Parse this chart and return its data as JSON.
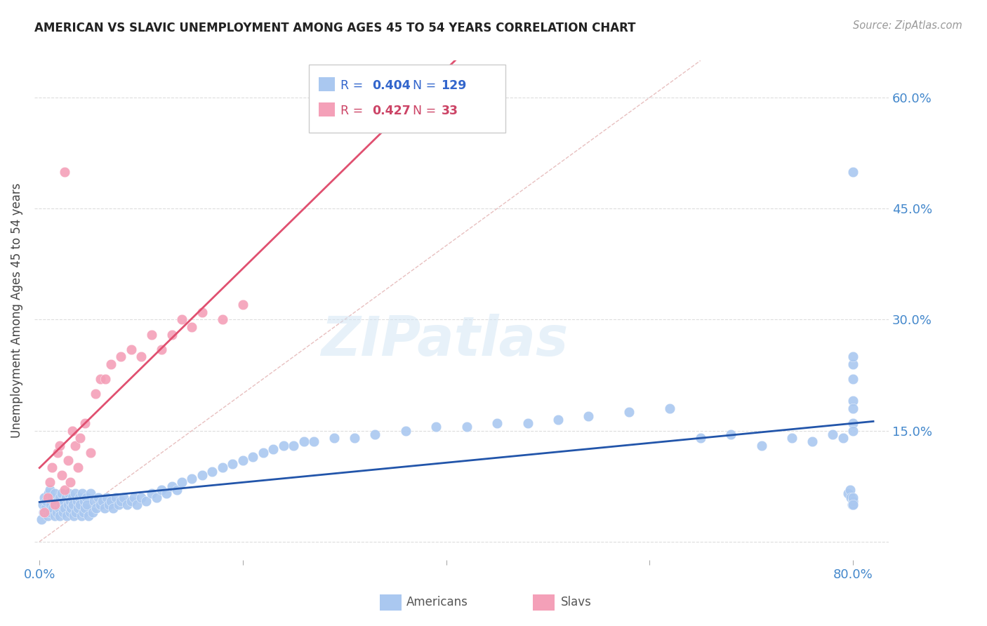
{
  "title": "AMERICAN VS SLAVIC UNEMPLOYMENT AMONG AGES 45 TO 54 YEARS CORRELATION CHART",
  "source": "Source: ZipAtlas.com",
  "ylabel": "Unemployment Among Ages 45 to 54 years",
  "legend_R_americans": "0.404",
  "legend_N_americans": "129",
  "legend_R_slavs": "0.427",
  "legend_N_slavs": "33",
  "american_color": "#aac8f0",
  "slavic_color": "#f4a0b8",
  "american_line_color": "#2255aa",
  "slavic_line_color": "#e05070",
  "diagonal_color": "#e8c0c0",
  "watermark": "ZIPatlas",
  "americans_x": [
    0.002,
    0.003,
    0.004,
    0.005,
    0.006,
    0.007,
    0.008,
    0.009,
    0.01,
    0.01,
    0.011,
    0.012,
    0.013,
    0.014,
    0.015,
    0.015,
    0.016,
    0.017,
    0.018,
    0.019,
    0.02,
    0.02,
    0.021,
    0.022,
    0.023,
    0.024,
    0.025,
    0.026,
    0.027,
    0.028,
    0.029,
    0.03,
    0.03,
    0.031,
    0.032,
    0.033,
    0.034,
    0.035,
    0.036,
    0.037,
    0.038,
    0.039,
    0.04,
    0.041,
    0.042,
    0.043,
    0.044,
    0.045,
    0.046,
    0.047,
    0.048,
    0.05,
    0.052,
    0.054,
    0.056,
    0.058,
    0.06,
    0.062,
    0.064,
    0.066,
    0.068,
    0.07,
    0.072,
    0.075,
    0.078,
    0.08,
    0.083,
    0.086,
    0.09,
    0.093,
    0.096,
    0.1,
    0.105,
    0.11,
    0.115,
    0.12,
    0.125,
    0.13,
    0.135,
    0.14,
    0.15,
    0.16,
    0.17,
    0.18,
    0.19,
    0.2,
    0.21,
    0.22,
    0.23,
    0.24,
    0.25,
    0.26,
    0.27,
    0.29,
    0.31,
    0.33,
    0.36,
    0.39,
    0.42,
    0.45,
    0.48,
    0.51,
    0.54,
    0.58,
    0.62,
    0.65,
    0.68,
    0.71,
    0.74,
    0.76,
    0.78,
    0.79,
    0.795,
    0.797,
    0.798,
    0.799,
    0.8,
    0.8,
    0.8,
    0.8,
    0.8,
    0.8,
    0.8,
    0.8,
    0.8,
    0.8,
    0.8,
    0.8,
    0.8
  ],
  "americans_y": [
    0.03,
    0.05,
    0.04,
    0.06,
    0.045,
    0.055,
    0.035,
    0.065,
    0.07,
    0.04,
    0.05,
    0.06,
    0.045,
    0.055,
    0.035,
    0.065,
    0.05,
    0.04,
    0.055,
    0.045,
    0.06,
    0.035,
    0.05,
    0.065,
    0.04,
    0.055,
    0.045,
    0.06,
    0.035,
    0.05,
    0.065,
    0.04,
    0.055,
    0.045,
    0.06,
    0.05,
    0.035,
    0.065,
    0.04,
    0.055,
    0.045,
    0.06,
    0.05,
    0.035,
    0.065,
    0.04,
    0.055,
    0.045,
    0.06,
    0.05,
    0.035,
    0.065,
    0.04,
    0.055,
    0.045,
    0.06,
    0.05,
    0.055,
    0.045,
    0.06,
    0.05,
    0.055,
    0.045,
    0.06,
    0.05,
    0.055,
    0.06,
    0.05,
    0.055,
    0.06,
    0.05,
    0.06,
    0.055,
    0.065,
    0.06,
    0.07,
    0.065,
    0.075,
    0.07,
    0.08,
    0.085,
    0.09,
    0.095,
    0.1,
    0.105,
    0.11,
    0.115,
    0.12,
    0.125,
    0.13,
    0.13,
    0.135,
    0.135,
    0.14,
    0.14,
    0.145,
    0.15,
    0.155,
    0.155,
    0.16,
    0.16,
    0.165,
    0.17,
    0.175,
    0.18,
    0.14,
    0.145,
    0.13,
    0.14,
    0.135,
    0.145,
    0.14,
    0.065,
    0.07,
    0.06,
    0.05,
    0.055,
    0.05,
    0.055,
    0.06,
    0.05,
    0.24,
    0.25,
    0.22,
    0.19,
    0.18,
    0.16,
    0.15,
    0.5
  ],
  "slavs_x": [
    0.005,
    0.008,
    0.01,
    0.012,
    0.015,
    0.018,
    0.02,
    0.022,
    0.025,
    0.025,
    0.028,
    0.03,
    0.032,
    0.035,
    0.038,
    0.04,
    0.045,
    0.05,
    0.055,
    0.06,
    0.065,
    0.07,
    0.08,
    0.09,
    0.1,
    0.11,
    0.12,
    0.13,
    0.14,
    0.15,
    0.16,
    0.18,
    0.2
  ],
  "slavs_y": [
    0.04,
    0.06,
    0.08,
    0.1,
    0.05,
    0.12,
    0.13,
    0.09,
    0.07,
    0.5,
    0.11,
    0.08,
    0.15,
    0.13,
    0.1,
    0.14,
    0.16,
    0.12,
    0.2,
    0.22,
    0.22,
    0.24,
    0.25,
    0.26,
    0.25,
    0.28,
    0.26,
    0.28,
    0.3,
    0.29,
    0.31,
    0.3,
    0.32
  ],
  "xlim": [
    -0.005,
    0.835
  ],
  "ylim": [
    -0.025,
    0.65
  ],
  "xticks": [
    0.0,
    0.2,
    0.4,
    0.6,
    0.8
  ],
  "xticklabels": [
    "0.0%",
    "",
    "",
    "",
    "80.0%"
  ],
  "yticks": [
    0.0,
    0.15,
    0.3,
    0.45,
    0.6
  ],
  "ytick_labels_right": [
    "",
    "15.0%",
    "30.0%",
    "45.0%",
    "60.0%"
  ]
}
